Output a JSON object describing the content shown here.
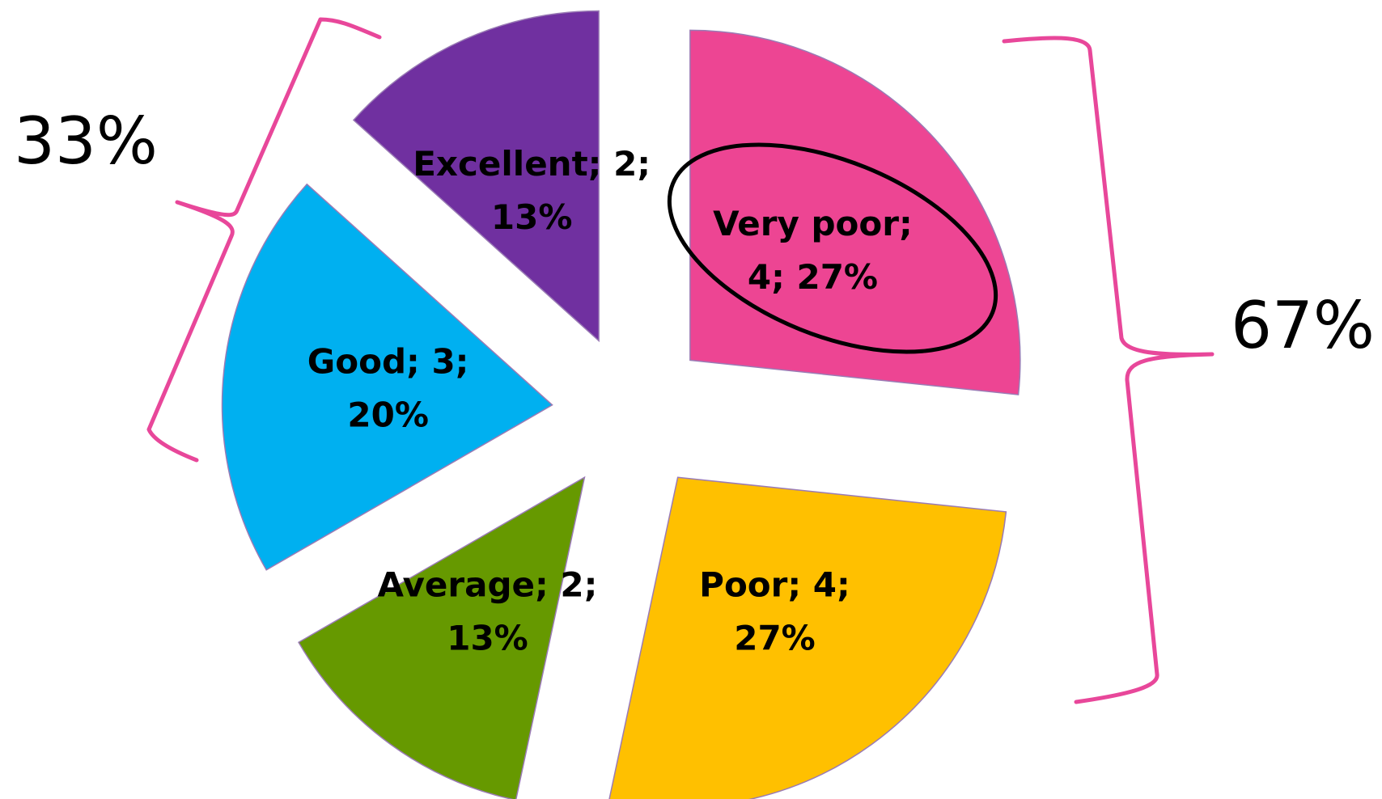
{
  "chart_data": {
    "type": "pie",
    "values": [
      4,
      4,
      2,
      3,
      2
    ],
    "value_labels": [
      [
        "Very poor;",
        "4; 27%"
      ],
      [
        "Poor; 4;",
        "27%"
      ],
      [
        "Average; 2;",
        "13%"
      ],
      [
        "Good; 3;",
        "20%"
      ],
      [
        "Excellent; 2;",
        "13%"
      ]
    ],
    "colors": [
      "#ED4593",
      "#FFC000",
      "#669900",
      "#00B0F0",
      "#7030A0"
    ],
    "exploded": true,
    "annotations": [
      "33%",
      "67%"
    ]
  }
}
